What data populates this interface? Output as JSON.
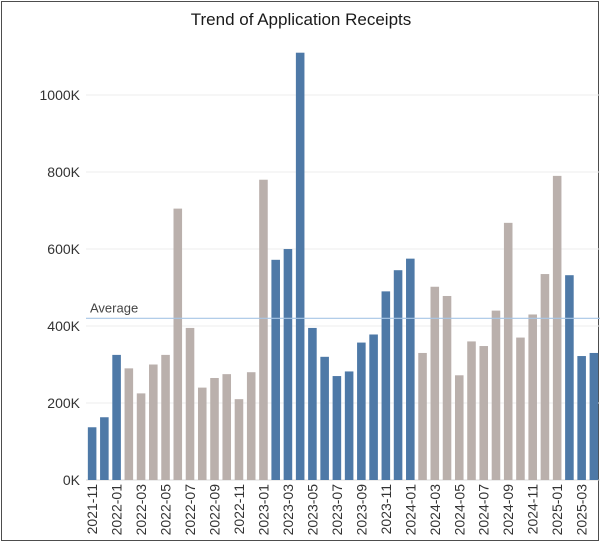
{
  "chart_data": {
    "type": "bar",
    "title": "Trend of Application Receipts",
    "xlabel": "",
    "ylabel": "",
    "ylim": [
      0,
      1130000
    ],
    "y_ticks": [
      0,
      200000,
      400000,
      600000,
      800000,
      1000000
    ],
    "y_tick_labels": [
      "0K",
      "200K",
      "400K",
      "600K",
      "800K",
      "1000K"
    ],
    "grid": "horizontal",
    "reference_line": {
      "label": "Average",
      "value": 420000
    },
    "colors": {
      "blue": "#4e79a7",
      "grey": "#bab0ac",
      "reference": "#a7c6e6"
    },
    "categories": [
      "2021-11",
      "2021-12",
      "2022-01",
      "2022-02",
      "2022-03",
      "2022-04",
      "2022-05",
      "2022-06",
      "2022-07",
      "2022-08",
      "2022-09",
      "2022-10",
      "2022-11",
      "2022-12",
      "2023-01",
      "2023-02",
      "2023-03",
      "2023-04",
      "2023-05",
      "2023-06",
      "2023-07",
      "2023-08",
      "2023-09",
      "2023-10",
      "2023-11",
      "2023-12",
      "2024-01",
      "2024-02",
      "2024-03",
      "2024-04",
      "2024-05",
      "2024-06",
      "2024-07",
      "2024-08",
      "2024-09",
      "2024-10",
      "2024-11",
      "2024-12",
      "2025-01",
      "2025-02",
      "2025-03",
      "2025-04"
    ],
    "x_tick_labels": [
      "2021-11",
      "",
      "2022-01",
      "",
      "2022-03",
      "",
      "2022-05",
      "",
      "2022-07",
      "",
      "2022-09",
      "",
      "2022-11",
      "",
      "2023-01",
      "",
      "2023-03",
      "",
      "2023-05",
      "",
      "2023-07",
      "",
      "2023-09",
      "",
      "2023-11",
      "",
      "2024-01",
      "",
      "2024-03",
      "",
      "2024-05",
      "",
      "2024-07",
      "",
      "2024-09",
      "",
      "2024-11",
      "",
      "2025-01",
      "",
      "2025-03",
      ""
    ],
    "values": [
      137000,
      163000,
      325000,
      290000,
      225000,
      300000,
      325000,
      705000,
      395000,
      240000,
      265000,
      275000,
      210000,
      280000,
      780000,
      572000,
      600000,
      1110000,
      395000,
      320000,
      270000,
      282000,
      357000,
      378000,
      490000,
      545000,
      575000,
      330000,
      502000,
      478000,
      272000,
      360000,
      348000,
      440000,
      668000,
      370000,
      430000,
      535000,
      790000,
      532000,
      322000,
      330000
    ],
    "bar_colors": [
      "blue",
      "blue",
      "blue",
      "grey",
      "grey",
      "grey",
      "grey",
      "grey",
      "grey",
      "grey",
      "grey",
      "grey",
      "grey",
      "grey",
      "grey",
      "blue",
      "blue",
      "blue",
      "blue",
      "blue",
      "blue",
      "blue",
      "blue",
      "blue",
      "blue",
      "blue",
      "blue",
      "grey",
      "grey",
      "grey",
      "grey",
      "grey",
      "grey",
      "grey",
      "grey",
      "grey",
      "grey",
      "grey",
      "grey",
      "blue",
      "blue",
      "blue"
    ]
  }
}
